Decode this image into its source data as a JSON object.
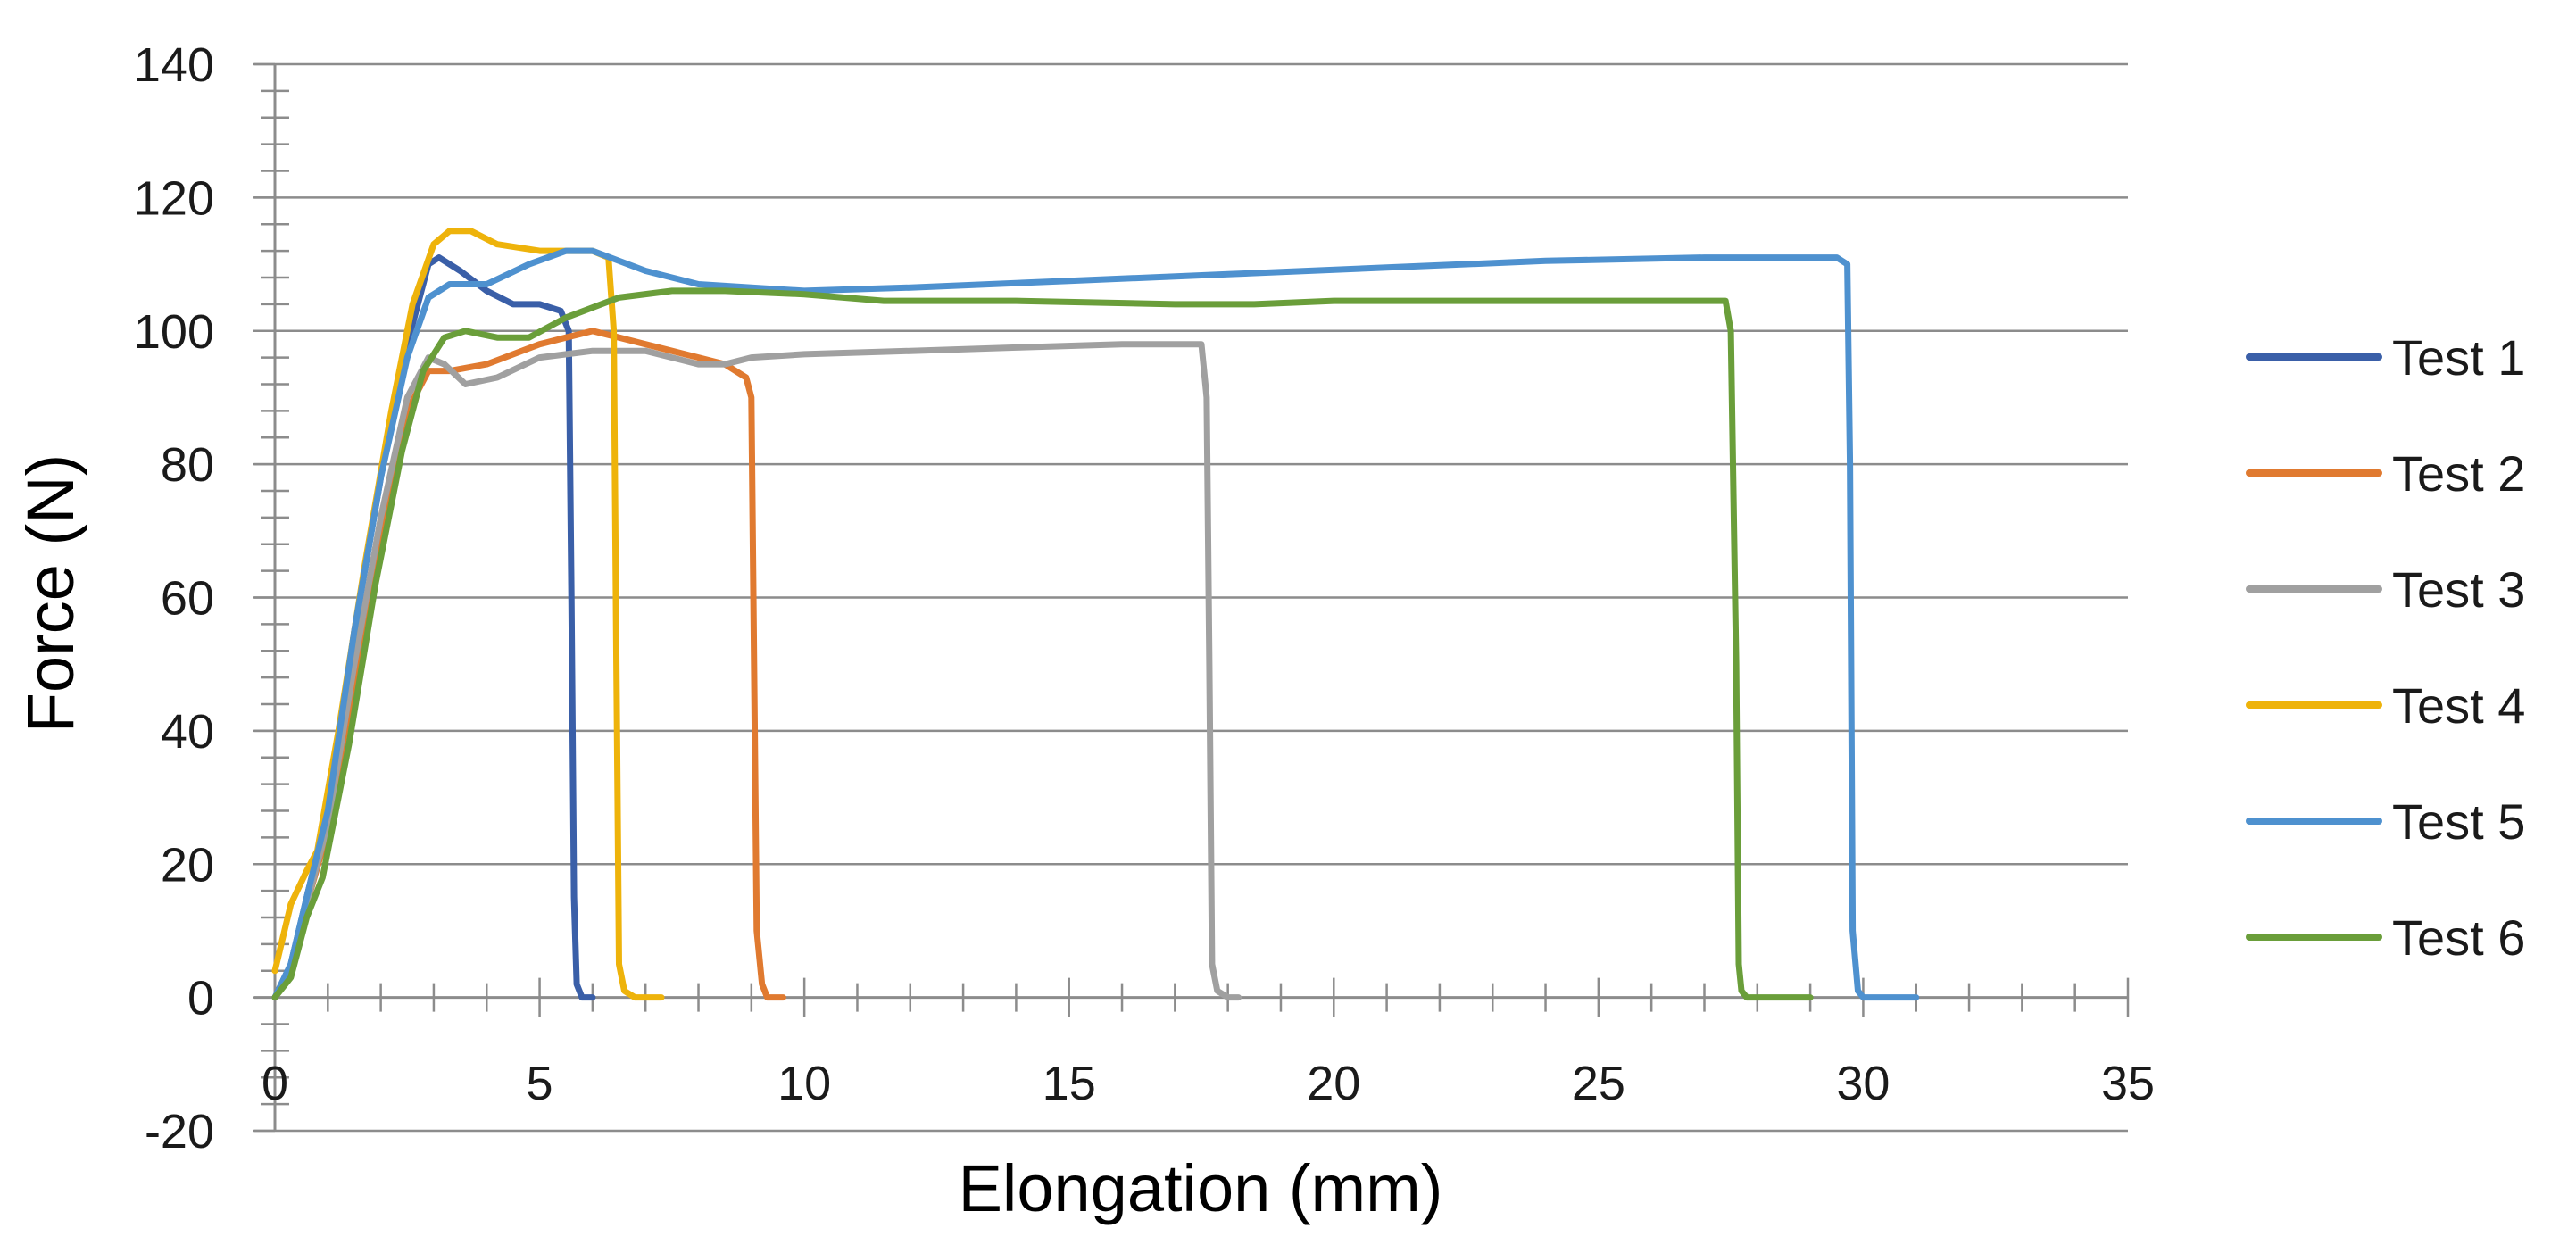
{
  "chart_data": {
    "type": "line",
    "title": "",
    "xlabel": "Elongation (mm)",
    "ylabel": "Force (N)",
    "xlim": [
      0,
      35
    ],
    "ylim": [
      -20,
      140
    ],
    "x_ticks": [
      0,
      5,
      10,
      15,
      20,
      25,
      30,
      35
    ],
    "y_ticks": [
      -20,
      0,
      20,
      40,
      60,
      80,
      100,
      120,
      140
    ],
    "x_tick_labels": [
      "0",
      "5",
      "10",
      "15",
      "20",
      "25",
      "30",
      "35"
    ],
    "y_tick_labels": [
      "-20",
      "0",
      "20",
      "40",
      "60",
      "80",
      "100",
      "120",
      "140"
    ],
    "grid": "horizontal major",
    "legend_position": "right",
    "series": [
      {
        "name": "Test 1",
        "color": "#3a5fa8",
        "points": [
          [
            0,
            0
          ],
          [
            0.3,
            5
          ],
          [
            0.6,
            15
          ],
          [
            1.0,
            28
          ],
          [
            1.5,
            55
          ],
          [
            2.0,
            78
          ],
          [
            2.5,
            98
          ],
          [
            2.9,
            110
          ],
          [
            3.1,
            111
          ],
          [
            3.5,
            109
          ],
          [
            4.0,
            106
          ],
          [
            4.5,
            104
          ],
          [
            5.0,
            104
          ],
          [
            5.4,
            103
          ],
          [
            5.55,
            100
          ],
          [
            5.6,
            60
          ],
          [
            5.65,
            15
          ],
          [
            5.7,
            2
          ],
          [
            5.8,
            0
          ],
          [
            6.0,
            0
          ]
        ]
      },
      {
        "name": "Test 2",
        "color": "#e07a30",
        "points": [
          [
            0,
            0
          ],
          [
            0.3,
            4
          ],
          [
            0.6,
            14
          ],
          [
            1.0,
            25
          ],
          [
            1.5,
            48
          ],
          [
            2.0,
            70
          ],
          [
            2.5,
            88
          ],
          [
            2.9,
            94
          ],
          [
            3.3,
            94
          ],
          [
            4.0,
            95
          ],
          [
            5.0,
            98
          ],
          [
            5.5,
            99
          ],
          [
            6.0,
            100
          ],
          [
            6.5,
            99
          ],
          [
            7.5,
            97
          ],
          [
            8.0,
            96
          ],
          [
            8.5,
            95
          ],
          [
            8.9,
            93
          ],
          [
            9.0,
            90
          ],
          [
            9.05,
            50
          ],
          [
            9.1,
            10
          ],
          [
            9.2,
            2
          ],
          [
            9.3,
            0
          ],
          [
            9.6,
            0
          ]
        ]
      },
      {
        "name": "Test 3",
        "color": "#a0a0a0",
        "points": [
          [
            0,
            0
          ],
          [
            0.3,
            4
          ],
          [
            0.6,
            14
          ],
          [
            1.0,
            26
          ],
          [
            1.5,
            50
          ],
          [
            2.0,
            72
          ],
          [
            2.5,
            90
          ],
          [
            2.9,
            96
          ],
          [
            3.2,
            95
          ],
          [
            3.6,
            92
          ],
          [
            4.2,
            93
          ],
          [
            5.0,
            96
          ],
          [
            6.0,
            97
          ],
          [
            7.0,
            97
          ],
          [
            8.0,
            95
          ],
          [
            8.5,
            95
          ],
          [
            9.0,
            96
          ],
          [
            10,
            96.5
          ],
          [
            12,
            97
          ],
          [
            14,
            97.5
          ],
          [
            16,
            98
          ],
          [
            17.5,
            98
          ],
          [
            17.6,
            90
          ],
          [
            17.65,
            50
          ],
          [
            17.7,
            5
          ],
          [
            17.8,
            1
          ],
          [
            18.0,
            0
          ],
          [
            18.2,
            0
          ]
        ]
      },
      {
        "name": "Test 4",
        "color": "#eeb30b",
        "points": [
          [
            0,
            4
          ],
          [
            0.3,
            14
          ],
          [
            0.6,
            19
          ],
          [
            0.8,
            22
          ],
          [
            1.2,
            40
          ],
          [
            1.7,
            65
          ],
          [
            2.2,
            88
          ],
          [
            2.6,
            104
          ],
          [
            3.0,
            113
          ],
          [
            3.3,
            115
          ],
          [
            3.7,
            115
          ],
          [
            4.2,
            113
          ],
          [
            5.0,
            112
          ],
          [
            5.5,
            112
          ],
          [
            6.0,
            112
          ],
          [
            6.3,
            111
          ],
          [
            6.4,
            100
          ],
          [
            6.45,
            50
          ],
          [
            6.5,
            5
          ],
          [
            6.6,
            1
          ],
          [
            6.8,
            0
          ],
          [
            7.3,
            0
          ]
        ]
      },
      {
        "name": "Test 5",
        "color": "#4e91cf",
        "points": [
          [
            0,
            0
          ],
          [
            0.3,
            5
          ],
          [
            0.6,
            15
          ],
          [
            1.0,
            28
          ],
          [
            1.5,
            55
          ],
          [
            2.0,
            78
          ],
          [
            2.5,
            96
          ],
          [
            2.9,
            105
          ],
          [
            3.3,
            107
          ],
          [
            4.0,
            107
          ],
          [
            4.8,
            110
          ],
          [
            5.5,
            112
          ],
          [
            6.0,
            112
          ],
          [
            7.0,
            109
          ],
          [
            8.0,
            107
          ],
          [
            9.0,
            106.5
          ],
          [
            10,
            106
          ],
          [
            12,
            106.5
          ],
          [
            15,
            107.5
          ],
          [
            18,
            108.5
          ],
          [
            21,
            109.5
          ],
          [
            24,
            110.5
          ],
          [
            27,
            111
          ],
          [
            29.5,
            111
          ],
          [
            29.7,
            110
          ],
          [
            29.75,
            80
          ],
          [
            29.8,
            10
          ],
          [
            29.9,
            1
          ],
          [
            30.0,
            0
          ],
          [
            31.0,
            0
          ]
        ]
      },
      {
        "name": "Test 6",
        "color": "#6a9e3a",
        "points": [
          [
            0,
            0
          ],
          [
            0.3,
            3
          ],
          [
            0.6,
            12
          ],
          [
            0.9,
            18
          ],
          [
            1.4,
            38
          ],
          [
            1.9,
            62
          ],
          [
            2.4,
            82
          ],
          [
            2.8,
            94
          ],
          [
            3.2,
            99
          ],
          [
            3.6,
            100
          ],
          [
            4.2,
            99
          ],
          [
            4.8,
            99
          ],
          [
            5.5,
            102
          ],
          [
            6.5,
            105
          ],
          [
            7.5,
            106
          ],
          [
            8.5,
            106
          ],
          [
            10,
            105.5
          ],
          [
            11.5,
            104.5
          ],
          [
            14,
            104.5
          ],
          [
            17,
            104
          ],
          [
            18.5,
            104
          ],
          [
            20,
            104.5
          ],
          [
            22,
            104.5
          ],
          [
            25,
            104.5
          ],
          [
            27.4,
            104.5
          ],
          [
            27.5,
            100
          ],
          [
            27.6,
            50
          ],
          [
            27.65,
            5
          ],
          [
            27.7,
            1
          ],
          [
            27.8,
            0
          ],
          [
            29.0,
            0
          ]
        ]
      }
    ]
  }
}
